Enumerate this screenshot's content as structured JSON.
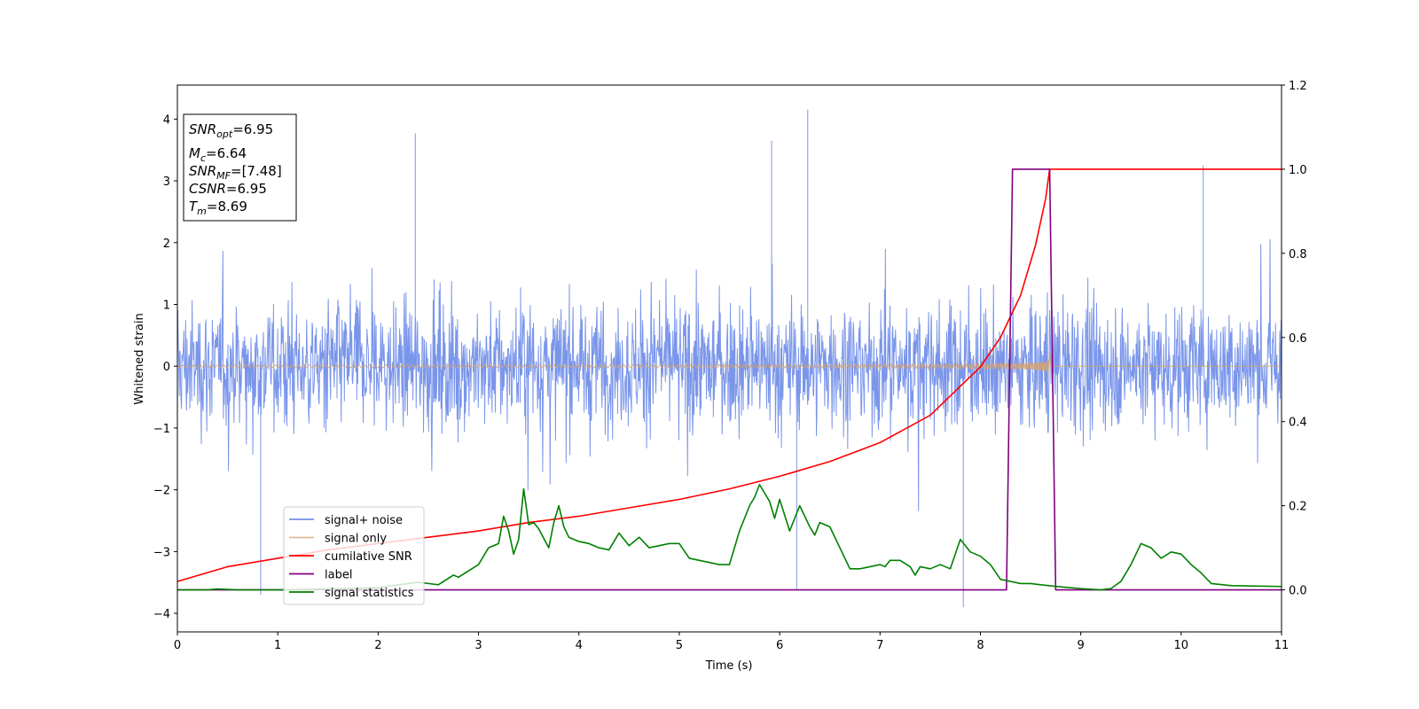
{
  "chart_data": {
    "type": "line",
    "xlabel": "Time (s)",
    "ylabel": "Whitened strain",
    "xlim": [
      0,
      11
    ],
    "ylim": [
      -4.3,
      4.55
    ],
    "y2lim": [
      -0.1,
      1.2
    ],
    "x_ticks": [
      "0",
      "1",
      "2",
      "3",
      "4",
      "5",
      "6",
      "7",
      "8",
      "9",
      "10",
      "11"
    ],
    "y_ticks": [
      "4",
      "3",
      "2",
      "1",
      "0",
      "−1",
      "−2",
      "−3",
      "−4"
    ],
    "y2_ticks": [
      "1.2",
      "1.0",
      "0.8",
      "0.6",
      "0.4",
      "0.2",
      "0.0"
    ],
    "grid": false,
    "legend_position": "lower-left",
    "info_box": {
      "snr_opt_label": "SNR",
      "snr_opt_sub": "opt",
      "snr_opt_value": "=6.95",
      "mc_label": "M",
      "mc_sub": "c",
      "mc_value": "=6.64",
      "snr_mf_label": "SNR",
      "snr_mf_sub": "MF",
      "snr_mf_value": "=[7.48]",
      "csnr_label": "CSNR",
      "csnr_value": "=6.95",
      "tm_label": "T",
      "tm_sub": "m",
      "tm_value": "=8.69"
    },
    "series": [
      {
        "name": "signal+ noise",
        "color": "#4169e1",
        "axis": "left",
        "style": "noise",
        "noise_band": [
          -1.4,
          1.4
        ],
        "spike_max": 4.15,
        "spike_min": -3.9,
        "highlight_spikes": [
          [
            2.37,
            3.77
          ],
          [
            5.92,
            3.65
          ],
          [
            6.28,
            4.15
          ],
          [
            10.22,
            3.25
          ],
          [
            7.83,
            -3.9
          ],
          [
            0.83,
            -3.7
          ],
          [
            6.17,
            -3.6
          ]
        ]
      },
      {
        "name": "signal only",
        "color": "#d4a373",
        "axis": "left",
        "style": "chirp",
        "merger_time": 8.69,
        "amplitude_start": 0.02,
        "amplitude_peak": 0.6
      },
      {
        "name": "cumilative SNR",
        "color": "#ff0000",
        "axis": "right",
        "x": [
          0,
          0.5,
          1,
          1.5,
          2,
          2.5,
          3,
          3.5,
          4,
          4.5,
          5,
          5.5,
          6,
          6.5,
          7,
          7.5,
          8,
          8.2,
          8.4,
          8.55,
          8.65,
          8.69,
          9,
          10,
          11
        ],
        "y": [
          0.02,
          0.055,
          0.075,
          0.095,
          0.11,
          0.125,
          0.14,
          0.16,
          0.175,
          0.195,
          0.215,
          0.24,
          0.27,
          0.305,
          0.35,
          0.415,
          0.53,
          0.6,
          0.7,
          0.82,
          0.93,
          1.0,
          1.0,
          1.0,
          1.0
        ]
      },
      {
        "name": "label",
        "color": "#800080",
        "axis": "right",
        "x": [
          0,
          8.26,
          8.32,
          8.69,
          8.75,
          11
        ],
        "y": [
          0.0,
          0.0,
          1.0,
          1.0,
          0.0,
          0.0
        ]
      },
      {
        "name": "signal statistics",
        "color": "#008000",
        "axis": "right",
        "x": [
          0,
          0.3,
          0.4,
          0.6,
          1.0,
          1.5,
          2.0,
          2.3,
          2.4,
          2.6,
          2.75,
          2.8,
          2.9,
          3.0,
          3.1,
          3.2,
          3.25,
          3.3,
          3.35,
          3.4,
          3.45,
          3.5,
          3.55,
          3.6,
          3.7,
          3.75,
          3.8,
          3.85,
          3.9,
          4.0,
          4.1,
          4.2,
          4.3,
          4.4,
          4.5,
          4.6,
          4.7,
          4.8,
          4.9,
          5.0,
          5.1,
          5.2,
          5.3,
          5.4,
          5.5,
          5.6,
          5.7,
          5.75,
          5.8,
          5.9,
          5.95,
          6.0,
          6.1,
          6.2,
          6.3,
          6.35,
          6.4,
          6.5,
          6.6,
          6.7,
          6.8,
          6.9,
          7.0,
          7.05,
          7.1,
          7.2,
          7.3,
          7.35,
          7.4,
          7.5,
          7.6,
          7.7,
          7.8,
          7.9,
          8.0,
          8.1,
          8.2,
          8.3,
          8.4,
          8.5,
          8.6,
          8.8,
          9.0,
          9.2,
          9.3,
          9.4,
          9.5,
          9.6,
          9.7,
          9.8,
          9.9,
          10.0,
          10.1,
          10.2,
          10.3,
          10.5,
          11.0
        ],
        "y": [
          0.0,
          0.0,
          0.002,
          0.0,
          0.0,
          0.002,
          0.005,
          0.015,
          0.018,
          0.012,
          0.035,
          0.03,
          0.045,
          0.06,
          0.1,
          0.11,
          0.175,
          0.14,
          0.085,
          0.12,
          0.24,
          0.155,
          0.16,
          0.145,
          0.1,
          0.16,
          0.2,
          0.15,
          0.125,
          0.115,
          0.11,
          0.1,
          0.095,
          0.135,
          0.105,
          0.125,
          0.1,
          0.105,
          0.11,
          0.11,
          0.075,
          0.07,
          0.065,
          0.06,
          0.06,
          0.14,
          0.2,
          0.22,
          0.25,
          0.21,
          0.17,
          0.215,
          0.14,
          0.2,
          0.15,
          0.13,
          0.16,
          0.15,
          0.1,
          0.05,
          0.05,
          0.055,
          0.06,
          0.055,
          0.07,
          0.07,
          0.055,
          0.035,
          0.055,
          0.05,
          0.06,
          0.05,
          0.12,
          0.09,
          0.08,
          0.06,
          0.025,
          0.02,
          0.015,
          0.015,
          0.012,
          0.007,
          0.003,
          0.0,
          0.003,
          0.02,
          0.06,
          0.11,
          0.1,
          0.075,
          0.09,
          0.085,
          0.06,
          0.04,
          0.015,
          0.01,
          0.008
        ]
      }
    ]
  }
}
